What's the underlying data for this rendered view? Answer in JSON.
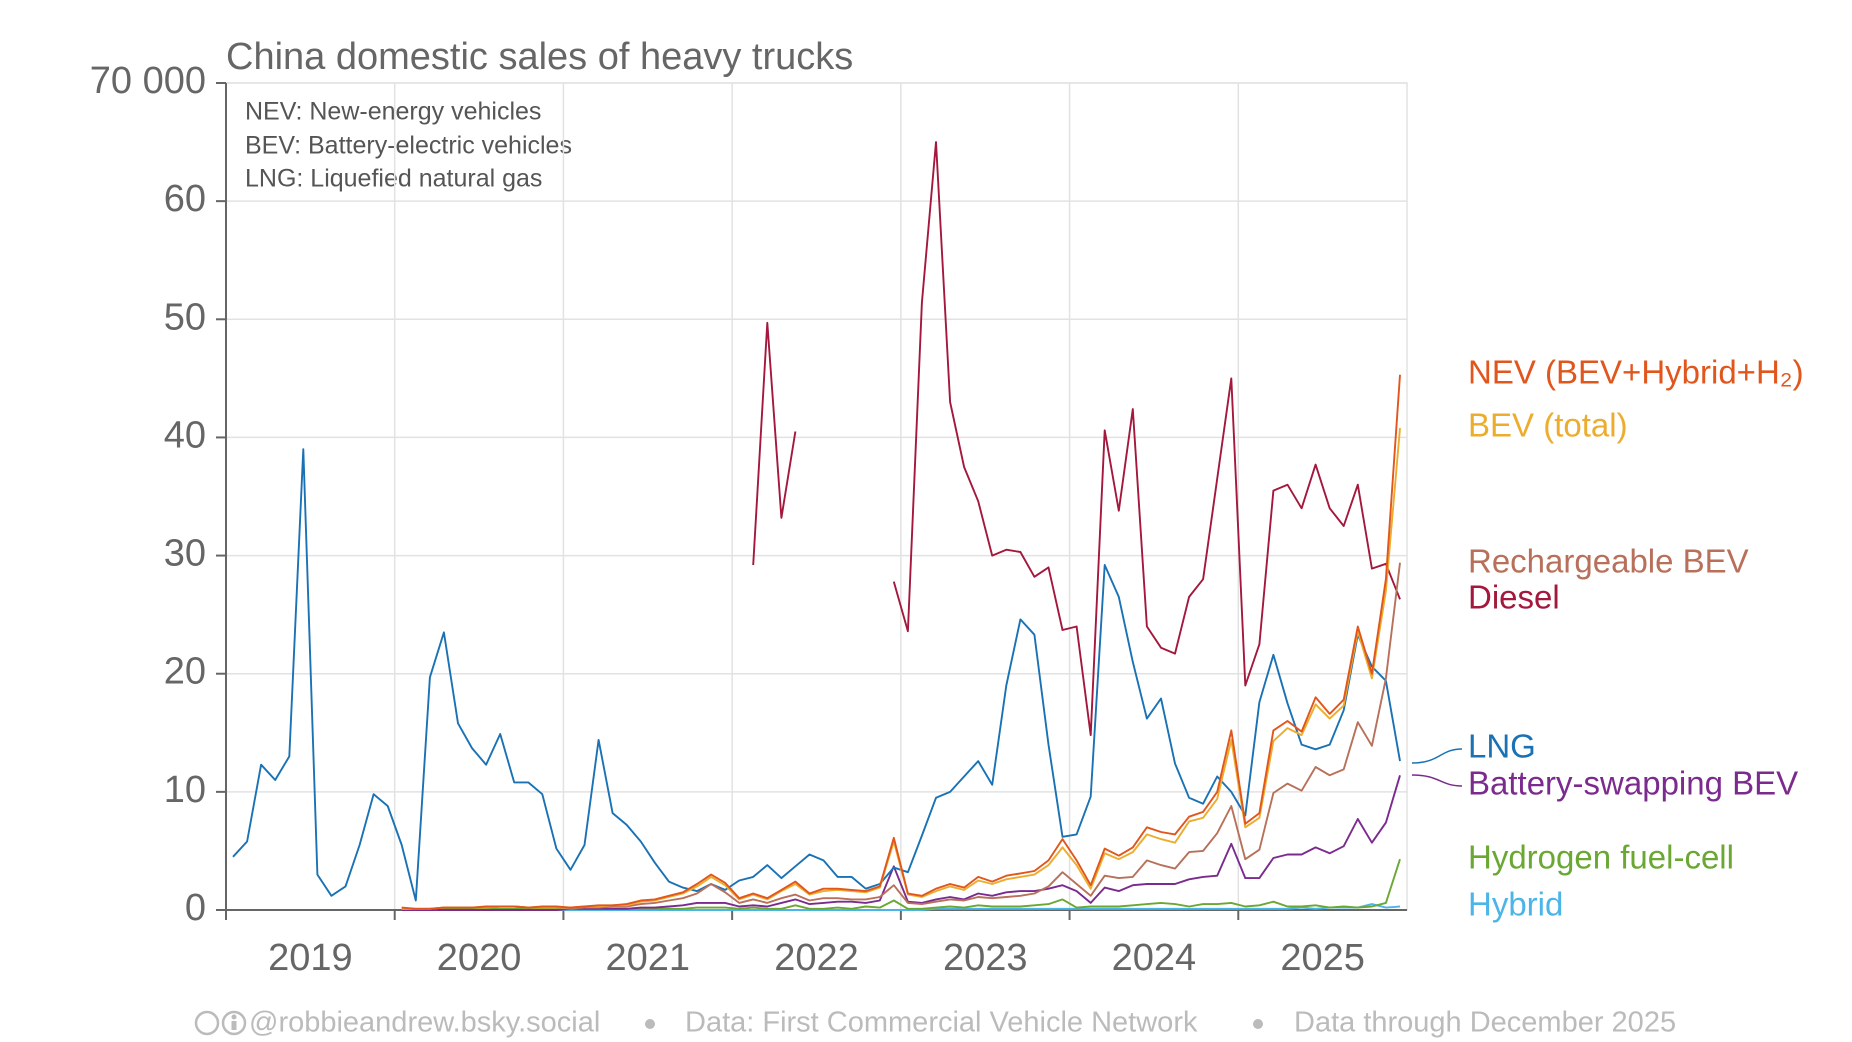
{
  "chart_data": {
    "type": "line",
    "title": "China domestic sales of heavy trucks",
    "annotations": [
      "NEV: New-energy vehicles",
      "BEV: Battery-electric vehicles",
      "LNG: Liquefied natural gas"
    ],
    "footer": [
      "@robbieandrew.bsky.social",
      "Data: First Commercial Vehicle Network",
      "Data through December 2025"
    ],
    "years": [
      "2019",
      "2020",
      "2021",
      "2022",
      "2023",
      "2024",
      "2025"
    ],
    "xlim": [
      2019,
      2026
    ],
    "xticks": [
      2020,
      2021,
      2022,
      2023,
      2024,
      2025
    ],
    "ylim": [
      0,
      70
    ],
    "yticks": [
      0,
      10,
      20,
      30,
      40,
      50,
      60,
      {
        "value": 70,
        "label": "70 000"
      }
    ],
    "grid": true,
    "series": [
      {
        "name": "NEV (BEV+Hybrid+H₂)",
        "color": "#e0561c",
        "values": [
          null,
          null,
          null,
          null,
          null,
          null,
          null,
          null,
          null,
          null,
          null,
          null,
          0.2,
          0.1,
          0.1,
          0.2,
          0.2,
          0.2,
          0.3,
          0.3,
          0.3,
          0.2,
          0.3,
          0.3,
          0.2,
          0.3,
          0.4,
          0.4,
          0.5,
          0.8,
          0.9,
          1.2,
          1.5,
          2.2,
          3.0,
          2.3,
          1.0,
          1.4,
          1.0,
          1.7,
          2.4,
          1.4,
          1.8,
          1.8,
          1.7,
          1.6,
          2.0,
          6.1,
          1.4,
          1.2,
          1.8,
          2.2,
          1.9,
          2.8,
          2.4,
          2.9,
          3.1,
          3.3,
          4.2,
          6.0,
          4.2,
          2.1,
          5.2,
          4.6,
          5.3,
          7.0,
          6.6,
          6.4,
          7.9,
          8.3,
          10.0,
          15.2,
          7.3,
          8.2,
          15.2,
          16.0,
          15.1,
          18.0,
          16.6,
          17.8,
          24.0,
          20.0,
          28.0,
          45.3
        ]
      },
      {
        "name": "BEV (total)",
        "color": "#ecad2e",
        "values": [
          null,
          null,
          null,
          null,
          null,
          null,
          null,
          null,
          null,
          null,
          null,
          null,
          0.1,
          0.1,
          0.1,
          0.2,
          0.2,
          0.2,
          0.2,
          0.3,
          0.3,
          0.2,
          0.2,
          0.2,
          0.2,
          0.3,
          0.3,
          0.4,
          0.4,
          0.7,
          0.8,
          1.1,
          1.4,
          2.0,
          2.8,
          2.1,
          0.9,
          1.3,
          0.9,
          1.6,
          2.2,
          1.3,
          1.6,
          1.7,
          1.6,
          1.5,
          1.9,
          5.8,
          1.3,
          1.1,
          1.6,
          2.0,
          1.7,
          2.5,
          2.2,
          2.6,
          2.8,
          3.0,
          3.8,
          5.3,
          3.8,
          1.8,
          4.8,
          4.3,
          4.9,
          6.4,
          6.0,
          5.7,
          7.5,
          7.8,
          9.4,
          14.4,
          7.0,
          7.8,
          14.3,
          15.4,
          14.8,
          17.4,
          16.2,
          17.3,
          23.6,
          19.6,
          27.0,
          40.8
        ]
      },
      {
        "name": "Rechargeable BEV",
        "color": "#b8705a",
        "values": [
          null,
          null,
          null,
          null,
          null,
          null,
          null,
          null,
          null,
          null,
          null,
          null,
          0.1,
          0.1,
          0.1,
          0.2,
          0.2,
          0.2,
          0.2,
          0.3,
          0.3,
          0.2,
          0.2,
          0.2,
          0.1,
          0.2,
          0.2,
          0.3,
          0.3,
          0.5,
          0.6,
          0.8,
          1.0,
          1.4,
          2.2,
          1.5,
          0.6,
          0.9,
          0.6,
          1.0,
          1.3,
          0.8,
          1.0,
          1.0,
          0.9,
          0.9,
          1.1,
          2.1,
          0.6,
          0.5,
          0.7,
          0.9,
          0.8,
          1.1,
          1.0,
          1.1,
          1.2,
          1.4,
          2.0,
          3.2,
          2.2,
          1.2,
          2.9,
          2.7,
          2.8,
          4.2,
          3.8,
          3.5,
          4.9,
          5.0,
          6.5,
          8.8,
          4.3,
          5.1,
          9.9,
          10.7,
          10.1,
          12.1,
          11.4,
          11.9,
          15.9,
          13.9,
          19.6,
          29.4
        ]
      },
      {
        "name": "Diesel",
        "color": "#a3183c",
        "values": [
          null,
          null,
          null,
          null,
          null,
          null,
          null,
          null,
          null,
          null,
          null,
          null,
          null,
          null,
          null,
          null,
          null,
          null,
          null,
          null,
          null,
          null,
          null,
          null,
          null,
          null,
          null,
          null,
          null,
          null,
          null,
          null,
          null,
          null,
          null,
          null,
          null,
          29.2,
          49.7,
          33.2,
          40.5,
          null,
          null,
          null,
          null,
          null,
          null,
          27.8,
          23.6,
          51.4,
          65.0,
          43.0,
          37.5,
          34.6,
          30.0,
          30.5,
          30.3,
          28.2,
          29.0,
          23.7,
          24.0,
          14.8,
          40.6,
          33.8,
          42.4,
          24.0,
          22.2,
          21.7,
          26.5,
          28.0,
          36.5,
          45.0,
          19.0,
          22.5,
          35.5,
          36.0,
          34.0,
          37.7,
          34.0,
          32.5,
          36.0,
          28.9,
          29.3,
          26.3
        ]
      },
      {
        "name": "LNG",
        "color": "#1a72b4",
        "values": [
          4.5,
          5.8,
          12.3,
          11.0,
          13.0,
          39.0,
          3.0,
          1.2,
          2.0,
          5.5,
          9.8,
          8.8,
          5.5,
          0.8,
          19.7,
          23.5,
          15.8,
          13.7,
          12.3,
          14.9,
          10.8,
          10.8,
          9.8,
          5.2,
          3.4,
          5.5,
          14.4,
          8.2,
          7.2,
          5.8,
          4.0,
          2.4,
          1.9,
          1.6,
          2.2,
          1.7,
          2.5,
          2.8,
          3.8,
          2.7,
          3.7,
          4.7,
          4.2,
          2.8,
          2.8,
          1.8,
          2.2,
          3.6,
          3.2,
          6.3,
          9.5,
          10.0,
          11.3,
          12.6,
          10.6,
          19.0,
          24.6,
          23.3,
          14.0,
          6.2,
          6.4,
          9.6,
          29.2,
          26.5,
          21.0,
          16.2,
          17.9,
          12.4,
          9.5,
          9.0,
          11.3,
          10.0,
          8.0,
          17.6,
          21.6,
          17.5,
          14.0,
          13.6,
          14.0,
          16.9,
          23.3,
          20.6,
          19.4,
          12.6
        ]
      },
      {
        "name": "Battery-swapping BEV",
        "color": "#7b2a8e",
        "values": [
          null,
          null,
          null,
          null,
          null,
          null,
          null,
          null,
          null,
          null,
          null,
          null,
          0,
          0,
          0,
          0,
          0,
          0,
          0,
          0,
          0,
          0,
          0,
          0,
          0.1,
          0.1,
          0.1,
          0.1,
          0.1,
          0.2,
          0.2,
          0.3,
          0.4,
          0.6,
          0.6,
          0.6,
          0.3,
          0.4,
          0.3,
          0.6,
          0.9,
          0.5,
          0.6,
          0.7,
          0.7,
          0.6,
          0.8,
          3.7,
          0.7,
          0.6,
          0.9,
          1.1,
          0.9,
          1.4,
          1.2,
          1.5,
          1.6,
          1.6,
          1.8,
          2.1,
          1.6,
          0.6,
          1.9,
          1.6,
          2.1,
          2.2,
          2.2,
          2.2,
          2.6,
          2.8,
          2.9,
          5.6,
          2.7,
          2.7,
          4.4,
          4.7,
          4.7,
          5.3,
          4.8,
          5.4,
          7.7,
          5.7,
          7.4,
          11.4
        ]
      },
      {
        "name": "Hydrogen fuel-cell",
        "color": "#6aa833",
        "values": [
          null,
          null,
          null,
          null,
          null,
          null,
          null,
          null,
          null,
          null,
          null,
          null,
          0.1,
          0,
          0,
          0.1,
          0.1,
          0.1,
          0.1,
          0.1,
          0.1,
          0.1,
          0.1,
          0.1,
          0.1,
          0.1,
          0.1,
          0.1,
          0.1,
          0.1,
          0.1,
          0.1,
          0.1,
          0.2,
          0.2,
          0.2,
          0.1,
          0.2,
          0.1,
          0.1,
          0.4,
          0.1,
          0.1,
          0.2,
          0.1,
          0.3,
          0.2,
          0.8,
          0.1,
          0.1,
          0.2,
          0.3,
          0.2,
          0.4,
          0.3,
          0.3,
          0.3,
          0.4,
          0.5,
          0.9,
          0.2,
          0.3,
          0.3,
          0.3,
          0.4,
          0.5,
          0.6,
          0.5,
          0.3,
          0.5,
          0.5,
          0.6,
          0.3,
          0.4,
          0.7,
          0.3,
          0.3,
          0.4,
          0.2,
          0.3,
          0.2,
          0.3,
          0.6,
          4.3
        ]
      },
      {
        "name": "Hybrid",
        "color": "#4cb5e8",
        "values": [
          null,
          null,
          null,
          null,
          null,
          null,
          null,
          null,
          null,
          null,
          null,
          null,
          0,
          0,
          0,
          0,
          0,
          0,
          0,
          0,
          0,
          0,
          0,
          0,
          0,
          0,
          0,
          0,
          0,
          0,
          0,
          0,
          0,
          0,
          0,
          0,
          0,
          0,
          0,
          0,
          0,
          0,
          0,
          0,
          0,
          0,
          0,
          0,
          0,
          0,
          0.1,
          0.1,
          0.1,
          0.1,
          0.1,
          0.1,
          0.1,
          0.1,
          0.1,
          0.1,
          0.1,
          0.1,
          0.1,
          0.1,
          0.1,
          0.1,
          0.1,
          0.1,
          0.1,
          0.1,
          0.1,
          0.1,
          0.1,
          0.1,
          0.1,
          0.1,
          0.2,
          0.1,
          0.2,
          0.2,
          0.2,
          0.5,
          0.2,
          0.3
        ]
      }
    ]
  }
}
